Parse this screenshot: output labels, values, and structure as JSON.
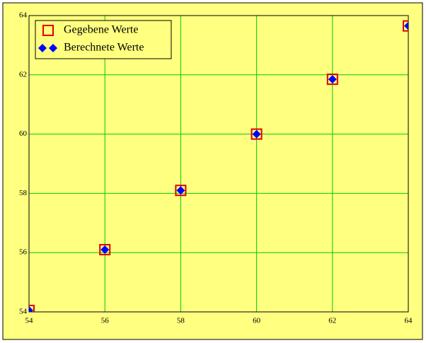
{
  "chart_data": {
    "type": "scatter",
    "series": [
      {
        "name": "Gegebene Werte",
        "color": "#e00000",
        "marker": "square",
        "x": [
          54,
          56,
          58,
          60,
          62,
          64
        ],
        "values": [
          54.05,
          56.1,
          58.1,
          60.0,
          61.85,
          63.65
        ]
      },
      {
        "name": "Berechnete Werte",
        "color": "#0000ff",
        "marker": "diamond",
        "x": [
          54,
          56,
          58,
          60,
          62,
          64
        ],
        "values": [
          54.05,
          56.1,
          58.1,
          60.0,
          61.85,
          63.65
        ]
      }
    ],
    "xlim": [
      54,
      64
    ],
    "ylim": [
      54,
      64
    ],
    "xticks": [
      54,
      56,
      58,
      60,
      62,
      64
    ],
    "yticks": [
      54,
      56,
      58,
      60,
      62,
      64
    ],
    "grid": true,
    "grid_color": "#00cc00",
    "background": "#ffff80",
    "legend": "top-left"
  }
}
